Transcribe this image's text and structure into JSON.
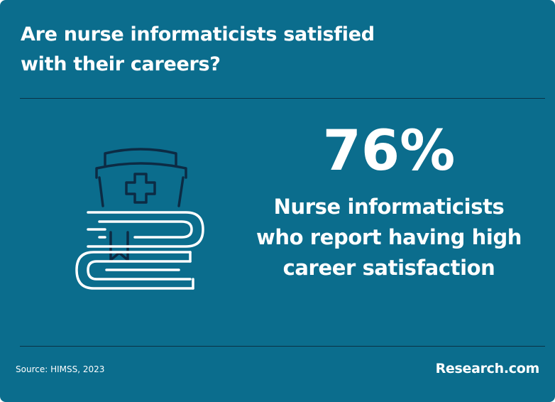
{
  "header": {
    "title_lines": [
      "Are nurse informaticists satisfied",
      "with their careers?"
    ]
  },
  "stat": {
    "value": "76%",
    "description_lines": [
      "Nurse informaticists",
      "who report having high",
      "career satisfaction"
    ]
  },
  "footer": {
    "source": "Source: HIMSS, 2023",
    "brand": "Research.com"
  }
}
